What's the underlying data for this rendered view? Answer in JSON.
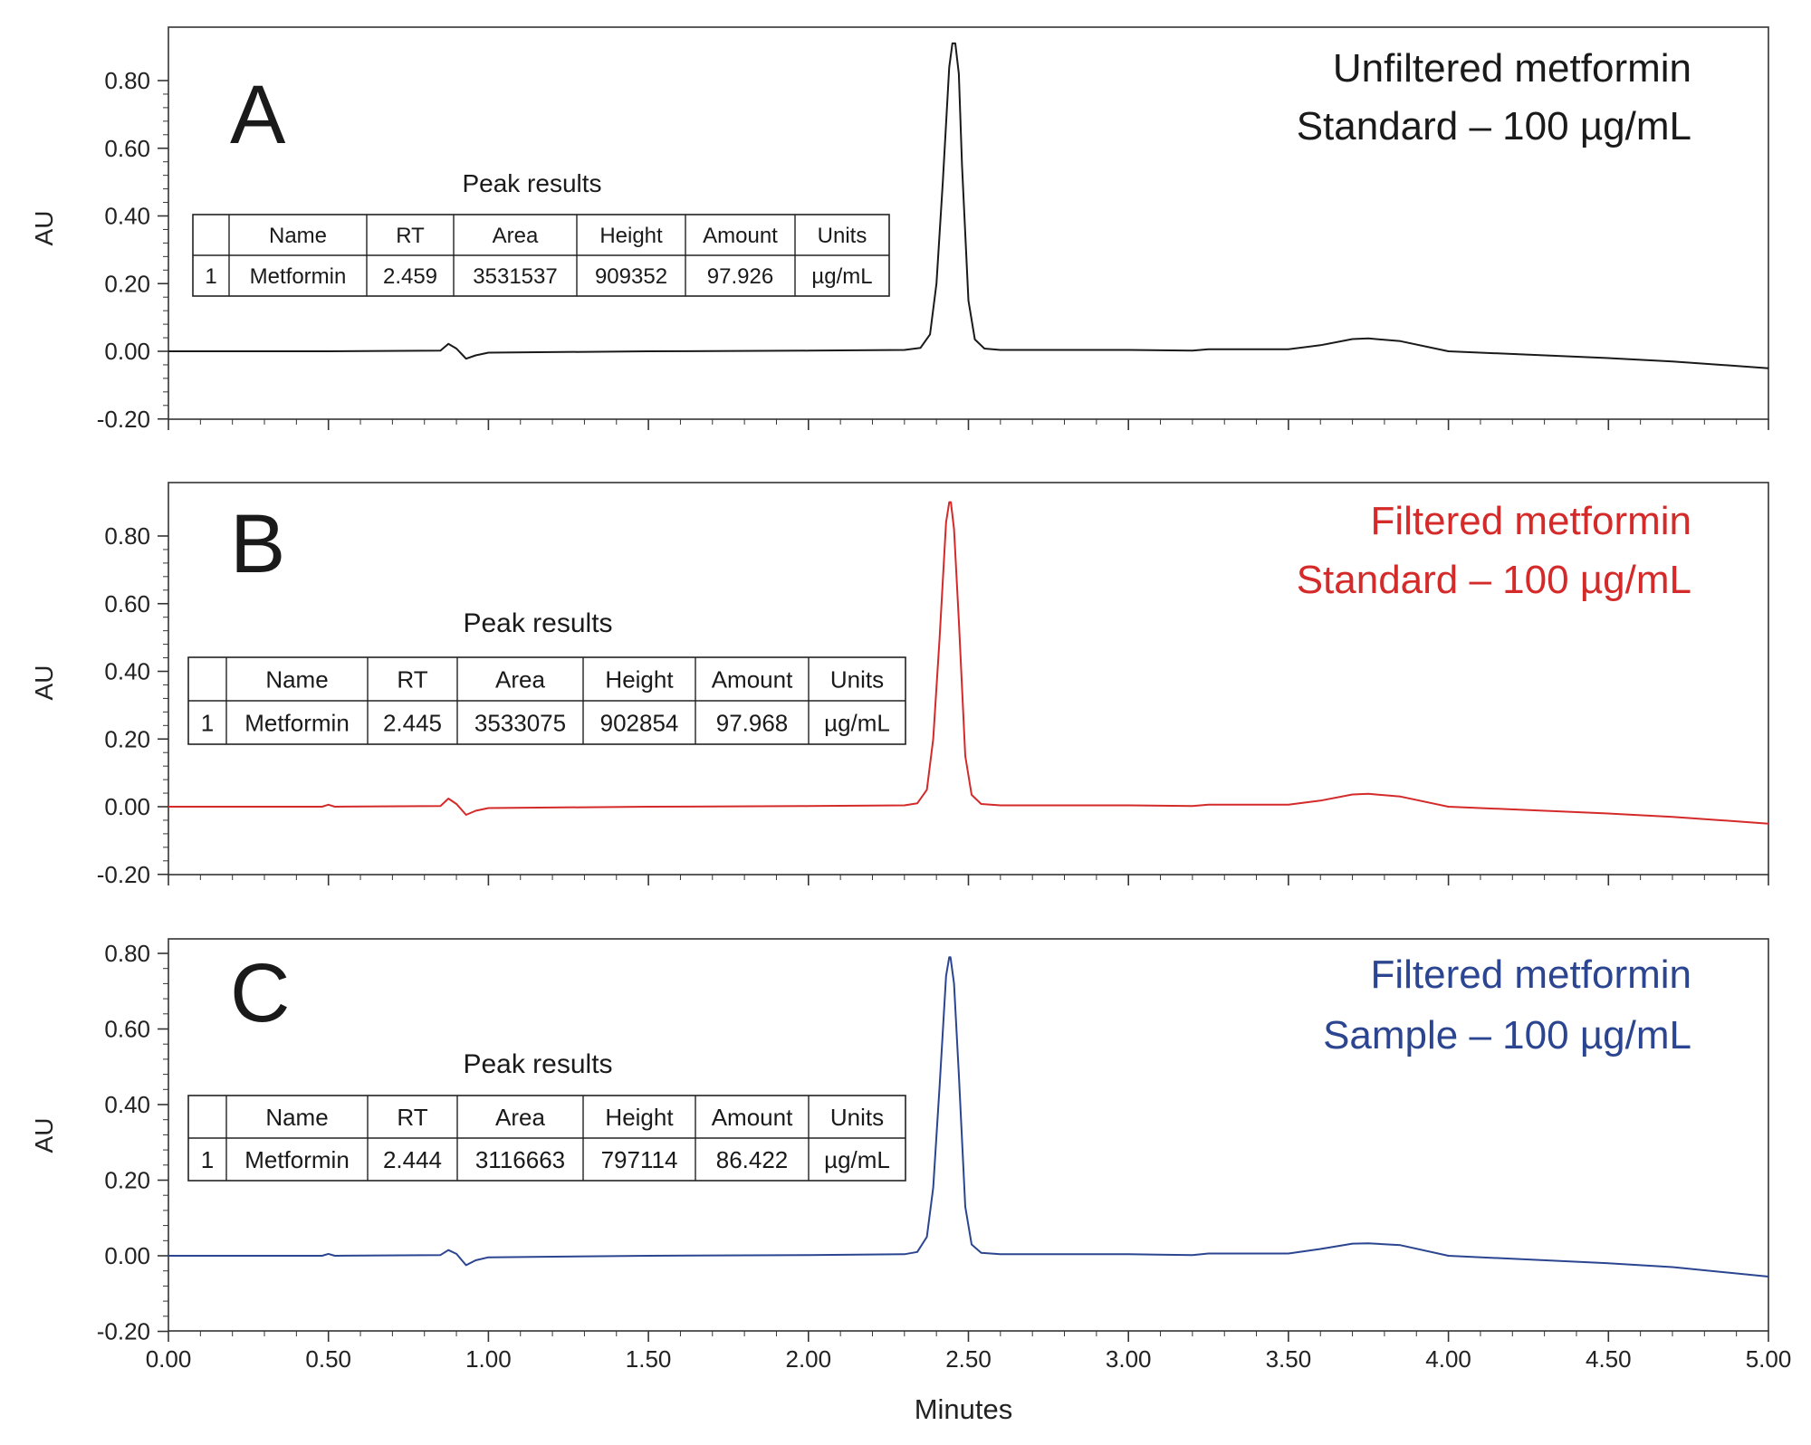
{
  "x_axis_label": "Minutes",
  "y_axis_label": "AU",
  "table_heading": "Peak results",
  "chart_data": [
    {
      "type": "line",
      "panel_letter": "A",
      "legend_lines": [
        "Unfiltered metformin",
        "Standard – 100 µg/mL"
      ],
      "color": "#1a1a1a",
      "xlabel": "Minutes",
      "ylabel": "AU",
      "xlim": [
        0,
        5
      ],
      "ylim": [
        -0.2,
        0.95
      ],
      "x_ticks": [
        "0.00",
        "0.50",
        "1.00",
        "1.50",
        "2.00",
        "2.50",
        "3.00",
        "3.50",
        "4.00",
        "4.50",
        "5.00"
      ],
      "y_ticks": [
        "0.80",
        "0.60",
        "0.40",
        "0.20",
        "0.00",
        "-0.20"
      ],
      "series": [
        {
          "x": [
            0.0,
            0.5,
            0.85,
            0.875,
            0.9,
            0.93,
            0.96,
            1.0,
            1.5,
            2.0,
            2.3,
            2.35,
            2.38,
            2.4,
            2.42,
            2.44,
            2.45,
            2.459,
            2.47,
            2.48,
            2.5,
            2.52,
            2.55,
            2.6,
            3.0,
            3.2,
            3.25,
            3.5,
            3.6,
            3.7,
            3.75,
            3.85,
            4.0,
            4.5,
            4.7,
            5.0
          ],
          "y": [
            0.0,
            0.0,
            0.002,
            0.022,
            0.008,
            -0.022,
            -0.012,
            -0.004,
            0.0,
            0.002,
            0.004,
            0.01,
            0.05,
            0.2,
            0.5,
            0.84,
            0.91,
            0.91,
            0.82,
            0.55,
            0.15,
            0.035,
            0.008,
            0.004,
            0.004,
            0.002,
            0.006,
            0.006,
            0.018,
            0.036,
            0.038,
            0.03,
            0.0,
            -0.02,
            -0.03,
            -0.05
          ]
        }
      ],
      "peak_table": {
        "columns": [
          "",
          "Name",
          "RT",
          "Area",
          "Height",
          "Amount",
          "Units"
        ],
        "rows": [
          [
            "1",
            "Metformin",
            "2.459",
            "3531537",
            "909352",
            "97.926",
            "µg/mL"
          ]
        ]
      }
    },
    {
      "type": "line",
      "panel_letter": "B",
      "legend_lines": [
        "Filtered metformin",
        "Standard – 100 µg/mL"
      ],
      "color": "#d42a2a",
      "xlabel": "Minutes",
      "ylabel": "AU",
      "xlim": [
        0,
        5
      ],
      "ylim": [
        -0.2,
        0.95
      ],
      "x_ticks": [
        "0.00",
        "0.50",
        "1.00",
        "1.50",
        "2.00",
        "2.50",
        "3.00",
        "3.50",
        "4.00",
        "4.50",
        "5.00"
      ],
      "y_ticks": [
        "0.80",
        "0.60",
        "0.40",
        "0.20",
        "0.00",
        "-0.20"
      ],
      "series": [
        {
          "x": [
            0.0,
            0.48,
            0.5,
            0.52,
            0.85,
            0.875,
            0.9,
            0.93,
            0.96,
            1.0,
            1.5,
            2.0,
            2.3,
            2.34,
            2.37,
            2.39,
            2.41,
            2.43,
            2.44,
            2.445,
            2.455,
            2.47,
            2.49,
            2.51,
            2.54,
            2.6,
            3.0,
            3.2,
            3.25,
            3.5,
            3.6,
            3.7,
            3.75,
            3.85,
            4.0,
            4.5,
            4.7,
            5.0
          ],
          "y": [
            0.0,
            0.0,
            0.006,
            0.0,
            0.002,
            0.024,
            0.008,
            -0.024,
            -0.012,
            -0.004,
            0.0,
            0.002,
            0.004,
            0.01,
            0.05,
            0.2,
            0.5,
            0.84,
            0.9,
            0.9,
            0.82,
            0.55,
            0.15,
            0.035,
            0.008,
            0.004,
            0.004,
            0.002,
            0.006,
            0.006,
            0.018,
            0.036,
            0.038,
            0.03,
            0.0,
            -0.02,
            -0.03,
            -0.05
          ]
        }
      ],
      "peak_table": {
        "columns": [
          "",
          "Name",
          "RT",
          "Area",
          "Height",
          "Amount",
          "Units"
        ],
        "rows": [
          [
            "1",
            "Metformin",
            "2.445",
            "3533075",
            "902854",
            "97.968",
            "µg/mL"
          ]
        ]
      }
    },
    {
      "type": "line",
      "panel_letter": "C",
      "legend_lines": [
        "Filtered metformin",
        "Sample – 100 µg/mL"
      ],
      "color": "#2b4590",
      "xlabel": "Minutes",
      "ylabel": "AU",
      "xlim": [
        0,
        5
      ],
      "ylim": [
        -0.2,
        0.82
      ],
      "x_ticks": [
        "0.00",
        "0.50",
        "1.00",
        "1.50",
        "2.00",
        "2.50",
        "3.00",
        "3.50",
        "4.00",
        "4.50",
        "5.00"
      ],
      "y_ticks": [
        "0.80",
        "0.60",
        "0.40",
        "0.20",
        "0.00",
        "-0.20"
      ],
      "series": [
        {
          "x": [
            0.0,
            0.48,
            0.5,
            0.52,
            0.85,
            0.875,
            0.9,
            0.93,
            0.96,
            1.0,
            1.5,
            2.0,
            2.3,
            2.34,
            2.37,
            2.39,
            2.41,
            2.43,
            2.44,
            2.444,
            2.455,
            2.47,
            2.49,
            2.51,
            2.54,
            2.6,
            3.0,
            3.2,
            3.25,
            3.5,
            3.6,
            3.7,
            3.75,
            3.85,
            4.0,
            4.5,
            4.7,
            5.0
          ],
          "y": [
            0.0,
            0.0,
            0.005,
            0.0,
            0.002,
            0.015,
            0.005,
            -0.025,
            -0.012,
            -0.004,
            0.0,
            0.002,
            0.004,
            0.01,
            0.05,
            0.18,
            0.45,
            0.74,
            0.79,
            0.79,
            0.72,
            0.48,
            0.13,
            0.03,
            0.008,
            0.004,
            0.004,
            0.002,
            0.006,
            0.006,
            0.018,
            0.032,
            0.033,
            0.028,
            0.0,
            -0.02,
            -0.03,
            -0.055
          ]
        }
      ],
      "peak_table": {
        "columns": [
          "",
          "Name",
          "RT",
          "Area",
          "Height",
          "Amount",
          "Units"
        ],
        "rows": [
          [
            "1",
            "Metformin",
            "2.444",
            "3116663",
            "797114",
            "86.422",
            "µg/mL"
          ]
        ]
      }
    }
  ]
}
